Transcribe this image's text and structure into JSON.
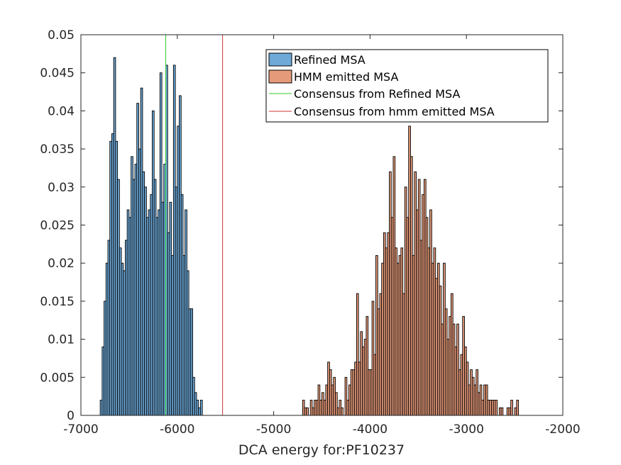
{
  "colors": {
    "refined": "#6ea9d8",
    "hmm": "#e59a7a",
    "consensus_refined": "#33cc33",
    "consensus_hmm": "#cc3333",
    "bar_edge": "#000000",
    "axis": "#262626"
  },
  "chart_data": {
    "type": "bar",
    "subtype": "histogram",
    "xlabel": "DCA energy for:PF10237",
    "ylabel": "",
    "title": "",
    "xlim": [
      -7000,
      -2000
    ],
    "ylim": [
      0,
      0.05
    ],
    "xticks": [
      -7000,
      -6000,
      -5000,
      -4000,
      -3000,
      -2000
    ],
    "xtick_labels": [
      "-7000",
      "-6000",
      "-5000",
      "-4000",
      "-3000",
      "-2000"
    ],
    "yticks": [
      0,
      0.005,
      0.01,
      0.015,
      0.02,
      0.025,
      0.03,
      0.035,
      0.04,
      0.045,
      0.05
    ],
    "ytick_labels": [
      "0",
      "0.005",
      "0.01",
      "0.015",
      "0.02",
      "0.025",
      "0.03",
      "0.035",
      "0.04",
      "0.045",
      "0.05"
    ],
    "grid": false,
    "legend": {
      "placement": "top-right",
      "entries": [
        "Refined MSA",
        "HMM emitted MSA",
        "Consensus from Refined MSA",
        "Consensus from hmm emitted MSA"
      ]
    },
    "series": [
      {
        "name": "Refined MSA",
        "bin_width": 20,
        "bin_start": -6800,
        "values": [
          0.002,
          0.009,
          0.015,
          0.02,
          0.023,
          0.036,
          0.037,
          0.047,
          0.036,
          0.031,
          0.022,
          0.02,
          0.019,
          0.023,
          0.027,
          0.026,
          0.034,
          0.031,
          0.033,
          0.041,
          0.035,
          0.043,
          0.032,
          0.03,
          0.026,
          0.027,
          0.029,
          0.04,
          0.031,
          0.026,
          0.027,
          0.045,
          0.028,
          0.033,
          0.046,
          0.024,
          0.028,
          0.021,
          0.046,
          0.03,
          0.038,
          0.042,
          0.029,
          0.021,
          0.027,
          0.019,
          0.014,
          0.014,
          0.005,
          0.003,
          0.002,
          0.001,
          0.002
        ]
      },
      {
        "name": "HMM emitted MSA",
        "bin_width": 20,
        "bin_start": -4700,
        "values": [
          0.002,
          0.001,
          0.001,
          0.0,
          0.002,
          0.001,
          0.002,
          0.002,
          0.004,
          0.002,
          0.003,
          0.002,
          0.004,
          0.007,
          0.006,
          0.004,
          0.005,
          0.003,
          0.001,
          0.002,
          0.001,
          0.0,
          0.005,
          0.002,
          0.004,
          0.006,
          0.006,
          0.007,
          0.016,
          0.007,
          0.011,
          0.009,
          0.01,
          0.013,
          0.006,
          0.006,
          0.015,
          0.008,
          0.021,
          0.014,
          0.016,
          0.02,
          0.024,
          0.022,
          0.024,
          0.032,
          0.026,
          0.034,
          0.022,
          0.02,
          0.021,
          0.022,
          0.016,
          0.03,
          0.026,
          0.038,
          0.034,
          0.021,
          0.032,
          0.027,
          0.031,
          0.023,
          0.029,
          0.031,
          0.026,
          0.022,
          0.027,
          0.02,
          0.022,
          0.018,
          0.02,
          0.017,
          0.012,
          0.02,
          0.014,
          0.01,
          0.013,
          0.016,
          0.012,
          0.009,
          0.012,
          0.006,
          0.008,
          0.013,
          0.009,
          0.007,
          0.004,
          0.006,
          0.005,
          0.004,
          0.006,
          0.003,
          0.004,
          0.002,
          0.004,
          0.004,
          0.002,
          0.002,
          0.002,
          0.002,
          0.002,
          0.0,
          0.001,
          0.001,
          0.0,
          0.0,
          0.001,
          0.001,
          0.002,
          0.0,
          0.001,
          0.002
        ]
      }
    ],
    "reference_lines": [
      {
        "name": "Consensus from Refined MSA",
        "x": -6120
      },
      {
        "name": "Consensus from hmm emitted MSA",
        "x": -5530
      }
    ]
  }
}
